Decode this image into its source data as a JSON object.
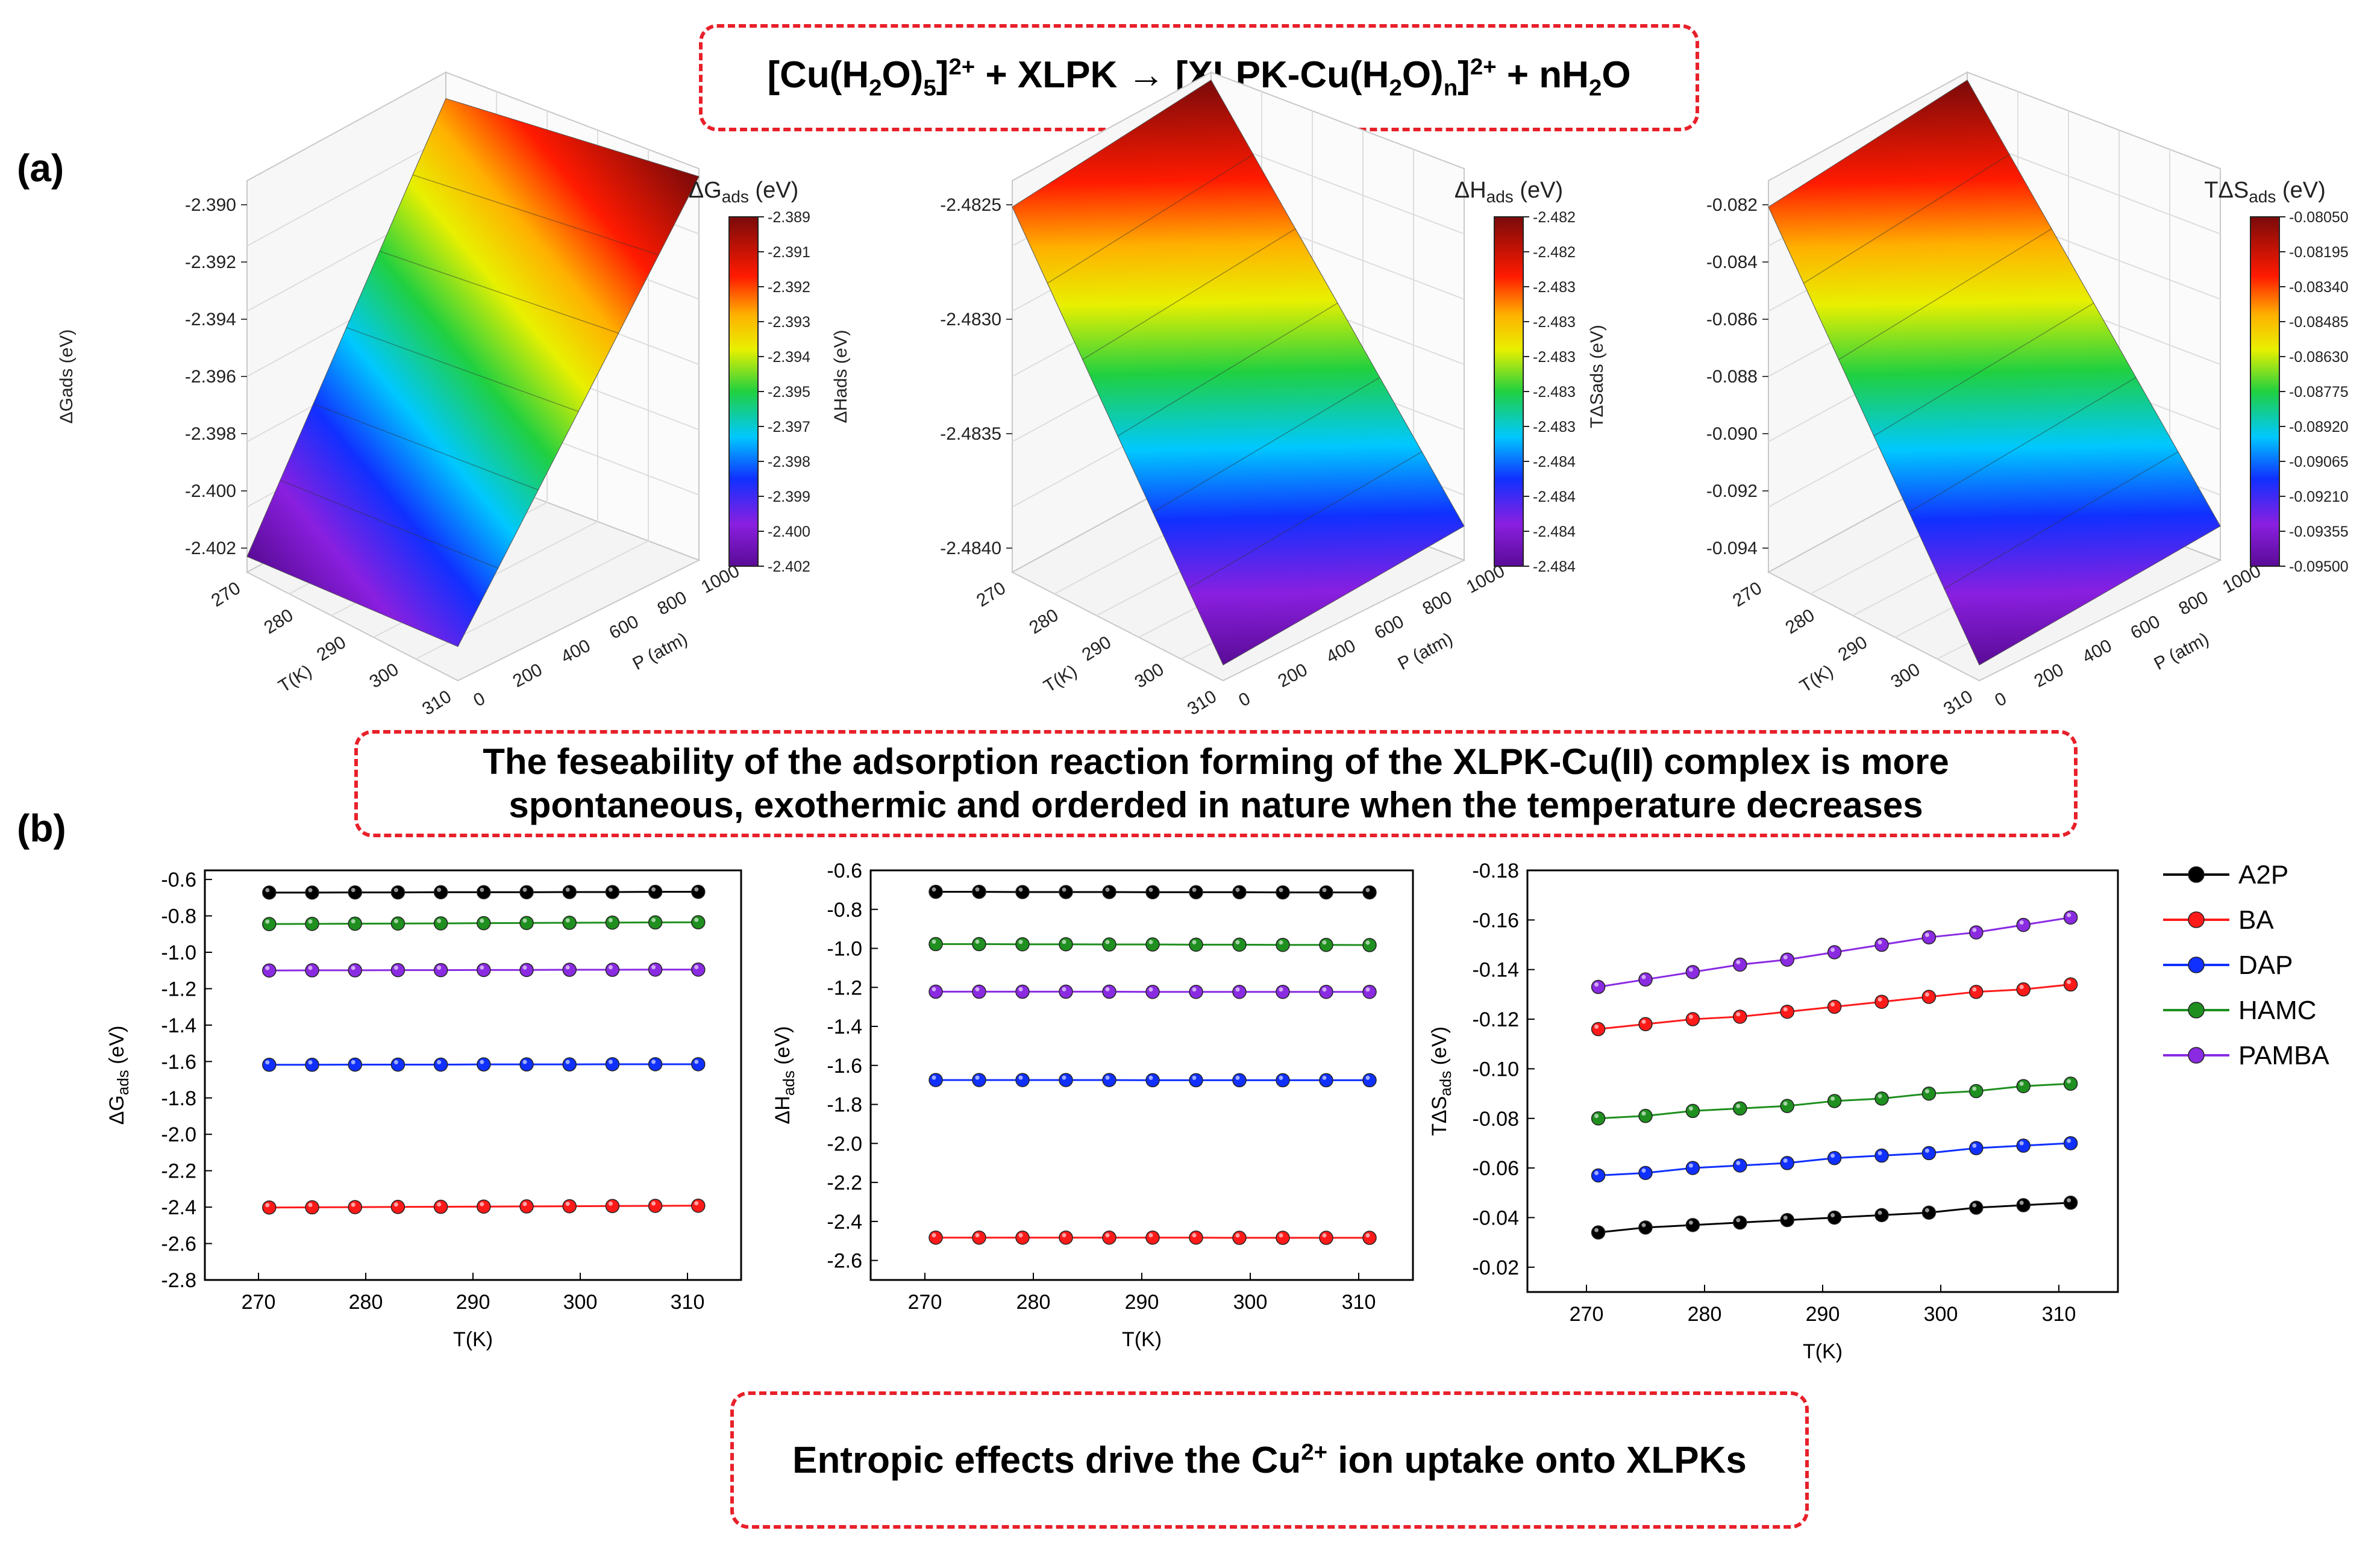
{
  "equation": {
    "reactant1": "[Cu(H",
    "r_sub2": "2",
    "r_o": "O)",
    "r_sub5": "5",
    "r_close": "]",
    "r_sup": "2+",
    "plus1": " + XLPK → [XLPK-Cu(H",
    "p_sub2": "2",
    "p_o": "O)",
    "p_subn": "n",
    "p_close": "]",
    "p_sup": "2+",
    "plus2": " + nH",
    "w_sub": "2",
    "w_o": "O"
  },
  "labels": {
    "a": "(a)",
    "b": "(b)"
  },
  "statement": {
    "line1": "The feseability of the adsorption reaction forming of the XLPK-Cu(II) complex is more",
    "line2": "spontaneous, exothermic and orderded in nature when the temperature decreases"
  },
  "bottom_box": {
    "pre": "Entropic effects drive the Cu",
    "sup": "2+",
    "post": " ion uptake onto XLPKs"
  },
  "colors": {
    "frame": "#e8202a"
  },
  "chart_data": [
    {
      "type": "surface3d",
      "id": "surface-dG",
      "title": "ΔG",
      "title_sub": "ads",
      "title_unit": "(eV)",
      "zlabel": "ΔGads (eV)",
      "xlabel": "T(K)",
      "ylabel": "P (atm)",
      "x_ticks": [
        "270",
        "280",
        "290",
        "300",
        "310"
      ],
      "y_ticks": [
        "0",
        "200",
        "400",
        "600",
        "800",
        "1000"
      ],
      "z_ticks": [
        "-2.390",
        "-2.392",
        "-2.394",
        "-2.396",
        "-2.398",
        "-2.400",
        "-2.402"
      ],
      "colorbar_ticks": [
        "-2.389",
        "-2.391",
        "-2.392",
        "-2.393",
        "-2.394",
        "-2.395",
        "-2.397",
        "-2.398",
        "-2.399",
        "-2.400",
        "-2.402"
      ],
      "zlim": [
        -2.402,
        -2.389
      ]
    },
    {
      "type": "surface3d",
      "id": "surface-dH",
      "title": "ΔH",
      "title_sub": "ads",
      "title_unit": "(eV)",
      "zlabel": "ΔHads (eV)",
      "xlabel": "T(K)",
      "ylabel": "P (atm)",
      "x_ticks": [
        "270",
        "280",
        "290",
        "300",
        "310"
      ],
      "y_ticks": [
        "0",
        "200",
        "400",
        "600",
        "800",
        "1000"
      ],
      "z_ticks": [
        "-2.4825",
        "-2.4830",
        "-2.4835",
        "-2.4840"
      ],
      "colorbar_ticks": [
        "-2.482",
        "-2.482",
        "-2.483",
        "-2.483",
        "-2.483",
        "-2.483",
        "-2.483",
        "-2.484",
        "-2.484",
        "-2.484",
        "-2.484"
      ],
      "zlim": [
        -2.4843,
        -2.4822
      ]
    },
    {
      "type": "surface3d",
      "id": "surface-TdS",
      "title": "TΔS",
      "title_sub": "ads",
      "title_unit": "(eV)",
      "zlabel": "TΔSads (eV)",
      "xlabel": "T(K)",
      "ylabel": "P (atm)",
      "x_ticks": [
        "270",
        "280",
        "290",
        "300",
        "310"
      ],
      "y_ticks": [
        "0",
        "200",
        "400",
        "600",
        "800",
        "1000"
      ],
      "z_ticks": [
        "-0.082",
        "-0.084",
        "-0.086",
        "-0.088",
        "-0.090",
        "-0.092",
        "-0.094"
      ],
      "colorbar_ticks": [
        "-0.08050",
        "-0.08195",
        "-0.08340",
        "-0.08485",
        "-0.08630",
        "-0.08775",
        "-0.08920",
        "-0.09065",
        "-0.09210",
        "-0.09355",
        "-0.09500"
      ],
      "zlim": [
        -0.095,
        -0.0805
      ]
    },
    {
      "type": "line",
      "id": "line-dG",
      "ylabel": "ΔG",
      "ylabel_sub": "ads",
      "ylabel_unit": " (eV)",
      "xlabel": "T(K)",
      "x": [
        271,
        275,
        279,
        283,
        287,
        291,
        295,
        299,
        303,
        307,
        311
      ],
      "xlim": [
        265,
        315
      ],
      "ylim": [
        -2.8,
        -0.55
      ],
      "y_inverted": false,
      "x_ticks": [
        270,
        280,
        290,
        300,
        310
      ],
      "y_ticks": [
        "-0.6",
        "-0.8",
        "-1.0",
        "-1.2",
        "-1.4",
        "-1.6",
        "-1.8",
        "-2.0",
        "-2.2",
        "-2.4",
        "-2.6",
        "-2.8"
      ],
      "series": [
        {
          "name": "A2P",
          "color": "#000000",
          "values": [
            -0.672,
            -0.672,
            -0.671,
            -0.671,
            -0.67,
            -0.67,
            -0.67,
            -0.669,
            -0.669,
            -0.668,
            -0.668
          ]
        },
        {
          "name": "HAMC",
          "color": "#1f8f1f",
          "values": [
            -0.845,
            -0.844,
            -0.843,
            -0.842,
            -0.841,
            -0.84,
            -0.839,
            -0.838,
            -0.837,
            -0.836,
            -0.835
          ]
        },
        {
          "name": "PAMBA",
          "color": "#8a2be2",
          "values": [
            -1.1,
            -1.099,
            -1.099,
            -1.098,
            -1.098,
            -1.097,
            -1.097,
            -1.096,
            -1.096,
            -1.095,
            -1.095
          ]
        },
        {
          "name": "DAP",
          "color": "#1030ff",
          "values": [
            -1.618,
            -1.618,
            -1.617,
            -1.617,
            -1.617,
            -1.616,
            -1.616,
            -1.616,
            -1.615,
            -1.615,
            -1.615
          ]
        },
        {
          "name": "BA",
          "color": "#ff1a1a",
          "values": [
            -2.402,
            -2.401,
            -2.4,
            -2.399,
            -2.398,
            -2.397,
            -2.396,
            -2.395,
            -2.394,
            -2.393,
            -2.392
          ]
        }
      ]
    },
    {
      "type": "line",
      "id": "line-dH",
      "ylabel": "ΔH",
      "ylabel_sub": "ads",
      "ylabel_unit": " (eV)",
      "xlabel": "T(K)",
      "x": [
        271,
        275,
        279,
        283,
        287,
        291,
        295,
        299,
        303,
        307,
        311
      ],
      "xlim": [
        265,
        315
      ],
      "ylim": [
        -2.7,
        -0.6
      ],
      "y_inverted": false,
      "x_ticks": [
        270,
        280,
        290,
        300,
        310
      ],
      "y_ticks": [
        "-0.6",
        "-0.8",
        "-1.0",
        "-1.2",
        "-1.4",
        "-1.6",
        "-1.8",
        "-2.0",
        "-2.2",
        "-2.4",
        "-2.6"
      ],
      "series": [
        {
          "name": "A2P",
          "color": "#000000",
          "values": [
            -0.71,
            -0.71,
            -0.711,
            -0.711,
            -0.711,
            -0.712,
            -0.712,
            -0.712,
            -0.713,
            -0.713,
            -0.713
          ]
        },
        {
          "name": "HAMC",
          "color": "#1f8f1f",
          "values": [
            -0.978,
            -0.978,
            -0.979,
            -0.979,
            -0.98,
            -0.98,
            -0.981,
            -0.981,
            -0.982,
            -0.982,
            -0.983
          ]
        },
        {
          "name": "PAMBA",
          "color": "#8a2be2",
          "values": [
            -1.222,
            -1.222,
            -1.222,
            -1.222,
            -1.222,
            -1.223,
            -1.223,
            -1.223,
            -1.223,
            -1.223,
            -1.223
          ]
        },
        {
          "name": "DAP",
          "color": "#1030ff",
          "values": [
            -1.675,
            -1.675,
            -1.675,
            -1.675,
            -1.675,
            -1.676,
            -1.676,
            -1.676,
            -1.676,
            -1.676,
            -1.676
          ]
        },
        {
          "name": "BA",
          "color": "#ff1a1a",
          "values": [
            -2.483,
            -2.483,
            -2.483,
            -2.483,
            -2.483,
            -2.483,
            -2.483,
            -2.484,
            -2.484,
            -2.484,
            -2.484
          ]
        }
      ]
    },
    {
      "type": "line",
      "id": "line-TdS",
      "ylabel": "TΔS",
      "ylabel_sub": "ads",
      "ylabel_unit": " (eV)",
      "xlabel": "T(K)",
      "x": [
        271,
        275,
        279,
        283,
        287,
        291,
        295,
        299,
        303,
        307,
        311
      ],
      "xlim": [
        265,
        315
      ],
      "ylim": [
        -0.01,
        -0.18
      ],
      "y_inverted": true,
      "x_ticks": [
        270,
        280,
        290,
        300,
        310
      ],
      "y_ticks": [
        "-0.18",
        "-0.16",
        "-0.14",
        "-0.12",
        "-0.10",
        "-0.08",
        "-0.06",
        "-0.04",
        "-0.02"
      ],
      "series": [
        {
          "name": "A2P",
          "color": "#000000",
          "values": [
            -0.034,
            -0.036,
            -0.037,
            -0.038,
            -0.039,
            -0.04,
            -0.041,
            -0.042,
            -0.044,
            -0.045,
            -0.046
          ]
        },
        {
          "name": "BA",
          "color": "#ff1a1a",
          "values": [
            -0.116,
            -0.118,
            -0.12,
            -0.121,
            -0.123,
            -0.125,
            -0.127,
            -0.129,
            -0.131,
            -0.132,
            -0.134
          ]
        },
        {
          "name": "DAP",
          "color": "#1030ff",
          "values": [
            -0.057,
            -0.058,
            -0.06,
            -0.061,
            -0.062,
            -0.064,
            -0.065,
            -0.066,
            -0.068,
            -0.069,
            -0.07
          ]
        },
        {
          "name": "HAMC",
          "color": "#1f8f1f",
          "values": [
            -0.08,
            -0.081,
            -0.083,
            -0.084,
            -0.085,
            -0.087,
            -0.088,
            -0.09,
            -0.091,
            -0.093,
            -0.094
          ]
        },
        {
          "name": "PAMBA",
          "color": "#8a2be2",
          "values": [
            -0.133,
            -0.136,
            -0.139,
            -0.142,
            -0.144,
            -0.147,
            -0.15,
            -0.153,
            -0.155,
            -0.158,
            -0.161
          ]
        }
      ]
    }
  ],
  "legend": [
    {
      "name": "A2P",
      "color": "#000000"
    },
    {
      "name": "BA",
      "color": "#ff1a1a"
    },
    {
      "name": "DAP",
      "color": "#1030ff"
    },
    {
      "name": "HAMC",
      "color": "#1f8f1f"
    },
    {
      "name": "PAMBA",
      "color": "#8a2be2"
    }
  ]
}
